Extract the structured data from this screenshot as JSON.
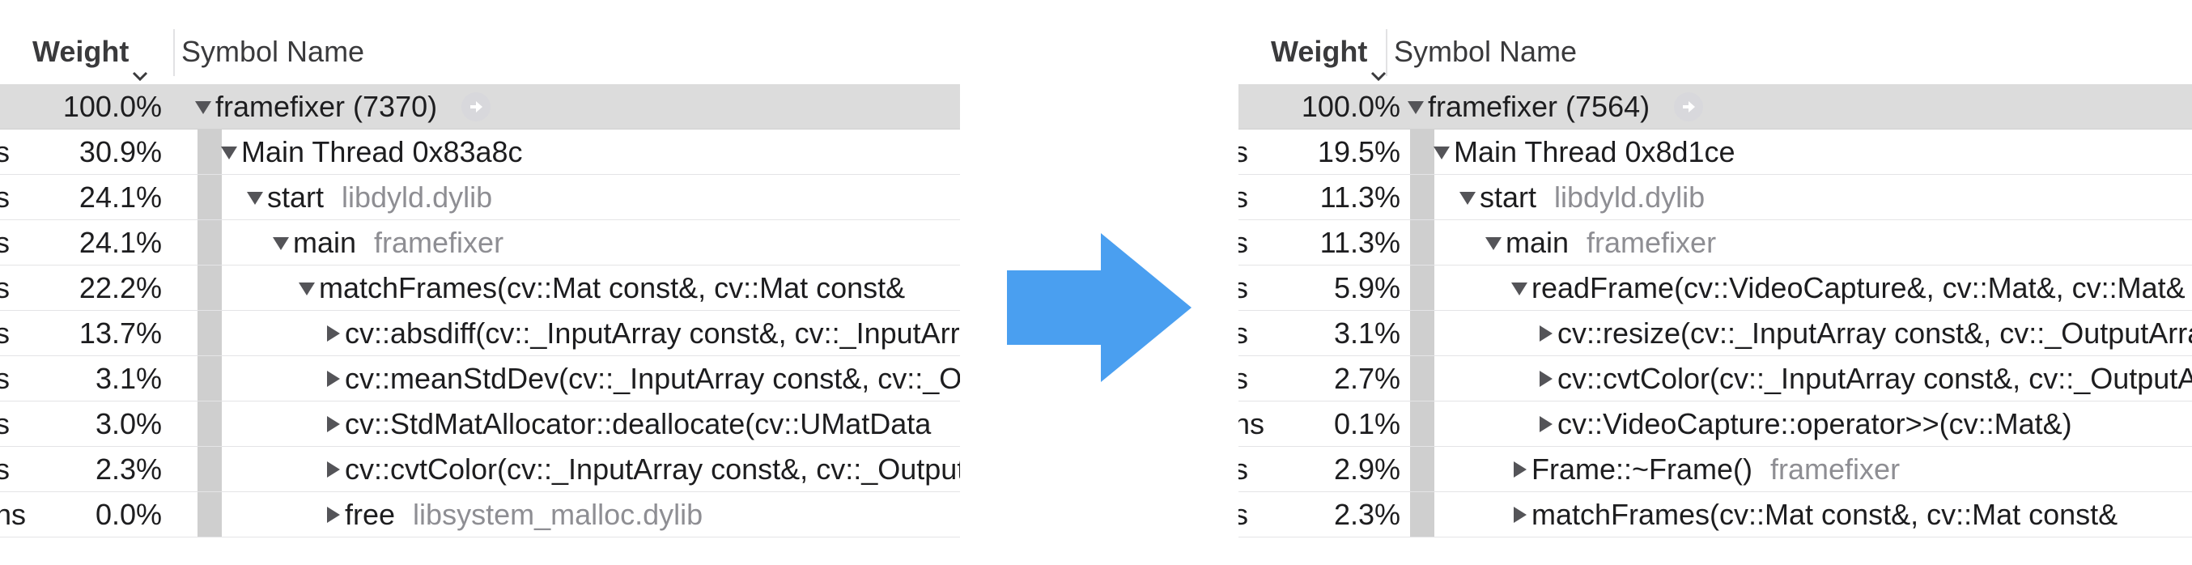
{
  "header": {
    "weight_label": "Weight",
    "symbol_label": "Symbol Name"
  },
  "left_panel": {
    "rows": [
      {
        "unit": "",
        "pct": "100.0%",
        "expander": "down",
        "name": "framefixer (7370)",
        "lib": "",
        "selected": true,
        "focus": true
      },
      {
        "unit": "s",
        "pct": "30.9%",
        "expander": "down",
        "name": "Main Thread  0x83a8c",
        "lib": ""
      },
      {
        "unit": "s",
        "pct": "24.1%",
        "expander": "down",
        "name": "start",
        "lib": "libdyld.dylib"
      },
      {
        "unit": "s",
        "pct": "24.1%",
        "expander": "down",
        "name": "main",
        "lib": "framefixer"
      },
      {
        "unit": "s",
        "pct": "22.2%",
        "expander": "down",
        "name": "matchFrames(cv::Mat const&, cv::Mat const&",
        "lib": ""
      },
      {
        "unit": "s",
        "pct": "13.7%",
        "expander": "right",
        "name": "cv::absdiff(cv::_InputArray const&, cv::_InputArray",
        "lib": ""
      },
      {
        "unit": "s",
        "pct": "3.1%",
        "expander": "right",
        "name": "cv::meanStdDev(cv::_InputArray const&, cv::_OutputArray",
        "lib": ""
      },
      {
        "unit": "s",
        "pct": "3.0%",
        "expander": "right",
        "name": "cv::StdMatAllocator::deallocate(cv::UMatData",
        "lib": ""
      },
      {
        "unit": "s",
        "pct": "2.3%",
        "expander": "right",
        "name": "cv::cvtColor(cv::_InputArray const&, cv::_OutputArray",
        "lib": ""
      },
      {
        "unit": "ns",
        "pct": "0.0%",
        "expander": "right",
        "name": "free",
        "lib": "libsystem_malloc.dylib"
      }
    ]
  },
  "right_panel": {
    "rows": [
      {
        "unit": "",
        "pct": "100.0%",
        "expander": "down",
        "name": "framefixer (7564)",
        "lib": "",
        "selected": true,
        "focus": true
      },
      {
        "unit": "s",
        "pct": "19.5%",
        "expander": "down",
        "name": "Main Thread  0x8d1ce",
        "lib": ""
      },
      {
        "unit": "s",
        "pct": "11.3%",
        "expander": "down",
        "name": "start",
        "lib": "libdyld.dylib"
      },
      {
        "unit": "s",
        "pct": "11.3%",
        "expander": "down",
        "name": "main",
        "lib": "framefixer"
      },
      {
        "unit": "s",
        "pct": "5.9%",
        "expander": "down",
        "name": "readFrame(cv::VideoCapture&, cv::Mat&, cv::Mat&",
        "lib": ""
      },
      {
        "unit": "s",
        "pct": "3.1%",
        "expander": "right",
        "name": "cv::resize(cv::_InputArray const&, cv::_OutputArray",
        "lib": ""
      },
      {
        "unit": "s",
        "pct": "2.7%",
        "expander": "right",
        "name": "cv::cvtColor(cv::_InputArray const&, cv::_OutputArray",
        "lib": ""
      },
      {
        "unit": "ns",
        "pct": "0.1%",
        "expander": "right",
        "name": "cv::VideoCapture::operator>>(cv::Mat&)",
        "lib": ""
      },
      {
        "unit": "s",
        "pct": "2.9%",
        "expander": "right",
        "name": "Frame::~Frame()",
        "lib": "framefixer"
      },
      {
        "unit": "s",
        "pct": "2.3%",
        "expander": "right",
        "name": "matchFrames(cv::Mat const&, cv::Mat const&",
        "lib": ""
      }
    ]
  },
  "arrow": {
    "color": "#4a9ff0",
    "icon": "right-arrow-icon"
  }
}
